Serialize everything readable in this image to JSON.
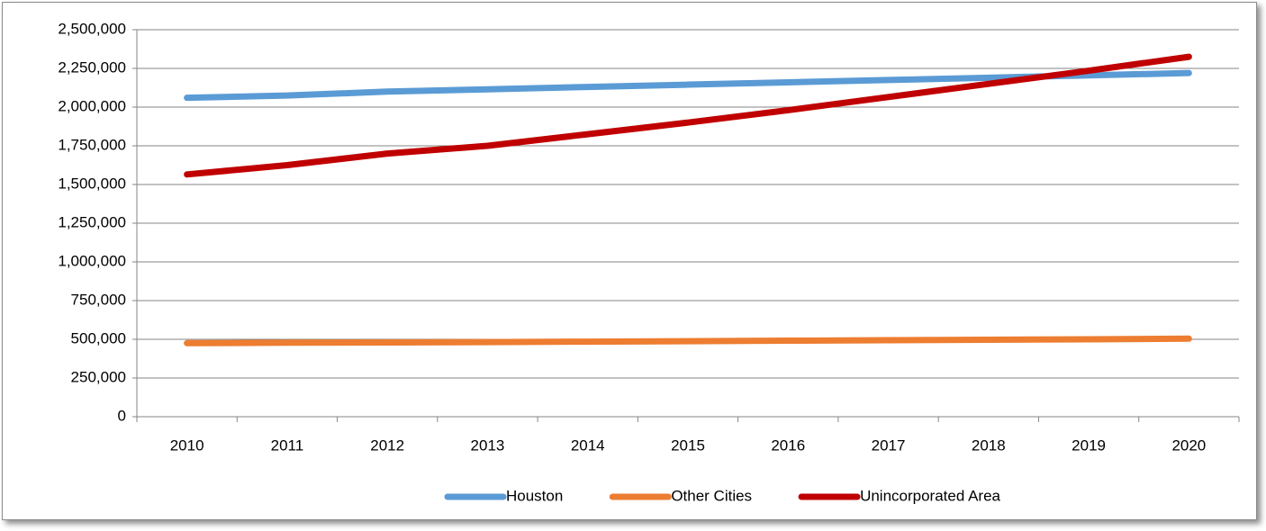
{
  "chart_data": {
    "type": "line",
    "categories": [
      "2010",
      "2011",
      "2012",
      "2013",
      "2014",
      "2015",
      "2016",
      "2017",
      "2018",
      "2019",
      "2020"
    ],
    "series": [
      {
        "name": "Houston",
        "color": "#5b9bd5",
        "values": [
          2060000,
          2075000,
          2100000,
          2115000,
          2130000,
          2145000,
          2160000,
          2175000,
          2190000,
          2205000,
          2220000
        ]
      },
      {
        "name": "Other Cities",
        "color": "#ed7d31",
        "values": [
          475000,
          478000,
          480000,
          482000,
          485000,
          488000,
          491000,
          494000,
          497000,
          500000,
          504000
        ]
      },
      {
        "name": "Unincorporated Area",
        "color": "#c00000",
        "values": [
          1565000,
          1625000,
          1700000,
          1750000,
          1825000,
          1900000,
          1980000,
          2065000,
          2150000,
          2235000,
          2325000
        ]
      }
    ],
    "ylim": [
      0,
      2500000
    ],
    "yticks": [
      0,
      {
        "value": 250000,
        "label": "250,000"
      },
      {
        "value": 500000,
        "label": "500,000"
      },
      {
        "value": 750000,
        "label": "750,000"
      },
      {
        "value": 1000000,
        "label": "1,000,000"
      },
      {
        "value": 1250000,
        "label": "1,250,000"
      },
      {
        "value": 1500000,
        "label": "1,500,000"
      },
      {
        "value": 1750000,
        "label": "1,750,000"
      },
      {
        "value": 2000000,
        "label": "2,000,000"
      },
      {
        "value": 2250000,
        "label": "2,250,000"
      },
      {
        "value": 2500000,
        "label": "2,500,000"
      }
    ],
    "grid": true,
    "legend": "bottom"
  }
}
